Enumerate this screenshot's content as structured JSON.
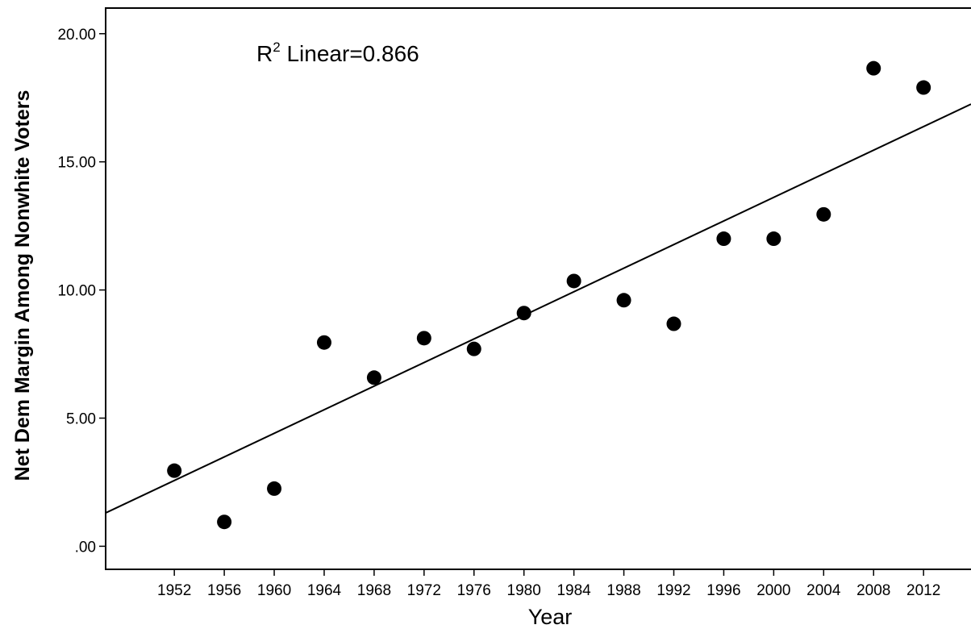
{
  "chart_data": {
    "type": "scatter",
    "title": "",
    "xlabel": "Year",
    "ylabel": "Net Dem Margin Among Nonwhite Voters",
    "annotation": {
      "r": "R",
      "sup": "2",
      "text": " Linear=0.866"
    },
    "x_ticks": [
      "1952",
      "1956",
      "1960",
      "1964",
      "1968",
      "1972",
      "1976",
      "1980",
      "1984",
      "1988",
      "1992",
      "1996",
      "2000",
      "2004",
      "2008",
      "2012"
    ],
    "y_ticks": [
      ".00",
      "5.00",
      "10.00",
      "15.00",
      "20.00"
    ],
    "xlim": [
      1946.5,
      2015.8
    ],
    "ylim": [
      -0.9,
      21.0
    ],
    "grid": false,
    "points": [
      {
        "x": 1952,
        "y": 2.95
      },
      {
        "x": 1956,
        "y": 0.95
      },
      {
        "x": 1960,
        "y": 2.25
      },
      {
        "x": 1964,
        "y": 7.95
      },
      {
        "x": 1968,
        "y": 6.58
      },
      {
        "x": 1972,
        "y": 8.12
      },
      {
        "x": 1976,
        "y": 7.7
      },
      {
        "x": 1980,
        "y": 9.1
      },
      {
        "x": 1984,
        "y": 10.35
      },
      {
        "x": 1988,
        "y": 9.6
      },
      {
        "x": 1992,
        "y": 8.68
      },
      {
        "x": 1996,
        "y": 12.0
      },
      {
        "x": 2000,
        "y": 12.0
      },
      {
        "x": 2004,
        "y": 12.95
      },
      {
        "x": 2008,
        "y": 18.65
      },
      {
        "x": 2012,
        "y": 17.9
      }
    ],
    "fit_line": {
      "type": "linear",
      "from": {
        "x": 1946.5,
        "y": 1.3
      },
      "to": {
        "x": 2015.8,
        "y": 17.25
      }
    },
    "colors": {
      "points": "#000000",
      "line": "#000000",
      "axes": "#000000",
      "background": "#ffffff"
    }
  }
}
